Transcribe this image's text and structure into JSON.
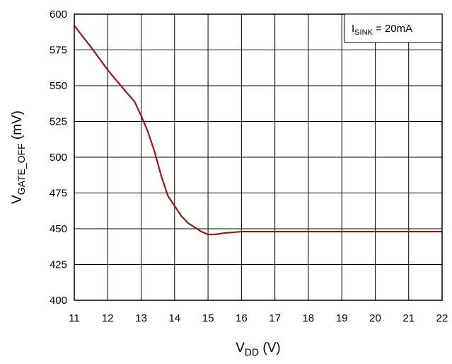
{
  "chart_data": {
    "type": "line",
    "title": "",
    "xlabel": {
      "main": "V",
      "sub": "DD",
      "unit": " (V)"
    },
    "ylabel": {
      "main": "V",
      "sub": "GATE_OFF",
      "unit": "  (mV)"
    },
    "annotation": {
      "main": "I",
      "sub": "SINK",
      "rest": " = 20mA",
      "position": "top-right"
    },
    "xlim": [
      11,
      22
    ],
    "ylim": [
      400,
      600
    ],
    "x_ticks": [
      11,
      12,
      13,
      14,
      15,
      16,
      17,
      18,
      19,
      20,
      21,
      22
    ],
    "y_ticks": [
      400,
      425,
      450,
      475,
      500,
      525,
      550,
      575,
      600
    ],
    "grid": true,
    "series": [
      {
        "color": "#8b1a1a",
        "x": [
          11.0,
          11.5,
          12.0,
          12.5,
          12.8,
          13.0,
          13.2,
          13.4,
          13.6,
          13.8,
          14.0,
          14.2,
          14.4,
          14.6,
          14.8,
          15.0,
          15.2,
          15.5,
          16.0,
          17.0,
          18.0,
          19.0,
          20.0,
          21.0,
          22.0
        ],
        "y": [
          592,
          577,
          561,
          547,
          539,
          529,
          518,
          504,
          487,
          473,
          466,
          459,
          454,
          451,
          448,
          446,
          446,
          447,
          448,
          448,
          448,
          448,
          448,
          448,
          448
        ]
      }
    ]
  }
}
